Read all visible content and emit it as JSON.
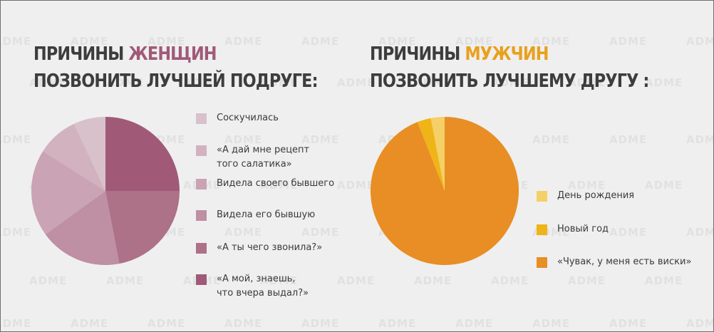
{
  "watermark_text": "ADME",
  "women": {
    "title_prefix": "ПРИЧИНЫ ",
    "title_highlight": "ЖЕНЩИН",
    "title_line2": "ПОЗВОНИТЬ ЛУЧШЕЙ ПОДРУГЕ:"
  },
  "men": {
    "title_prefix": "ПРИЧИНЫ ",
    "title_highlight": "МУЖЧИН",
    "title_line2": "ПОЗВОНИТЬ ЛУЧШЕМУ ДРУГУ :"
  },
  "colors": {
    "women_accent": "#a05a78",
    "men_accent": "#e9a01d"
  },
  "chart_data": [
    {
      "type": "pie",
      "title": "ПРИЧИНЫ ЖЕНЩИН ПОЗВОНИТЬ ЛУЧШЕЙ ПОДРУГЕ:",
      "legend_placement": "right",
      "slices": [
        {
          "label": "Соскучилась",
          "value": 7,
          "color": "#d8c1cb"
        },
        {
          "label": "«А дай мне рецепт того салатика»",
          "value": 9,
          "color": "#d2b2bf"
        },
        {
          "label": "Видела своего бывшего",
          "value": 19,
          "color": "#caa3b4"
        },
        {
          "label": "Видела его бывшую",
          "value": 18,
          "color": "#bf8fa3"
        },
        {
          "label": "«А ты чего звонила?»",
          "value": 22,
          "color": "#ad7188"
        },
        {
          "label": "«А мой, знаешь, что вчера выдал?»",
          "value": 25,
          "color": "#a05a78"
        }
      ]
    },
    {
      "type": "pie",
      "title": "ПРИЧИНЫ МУЖЧИН ПОЗВОНИТЬ ЛУЧШЕМУ ДРУГУ :",
      "legend_placement": "right",
      "slices": [
        {
          "label": "День рождения",
          "value": 3,
          "color": "#f5d066"
        },
        {
          "label": "Новый год",
          "value": 3,
          "color": "#efb417"
        },
        {
          "label": "«Чувак, у меня есть виски»",
          "value": 94,
          "color": "#e88e24"
        }
      ]
    }
  ]
}
